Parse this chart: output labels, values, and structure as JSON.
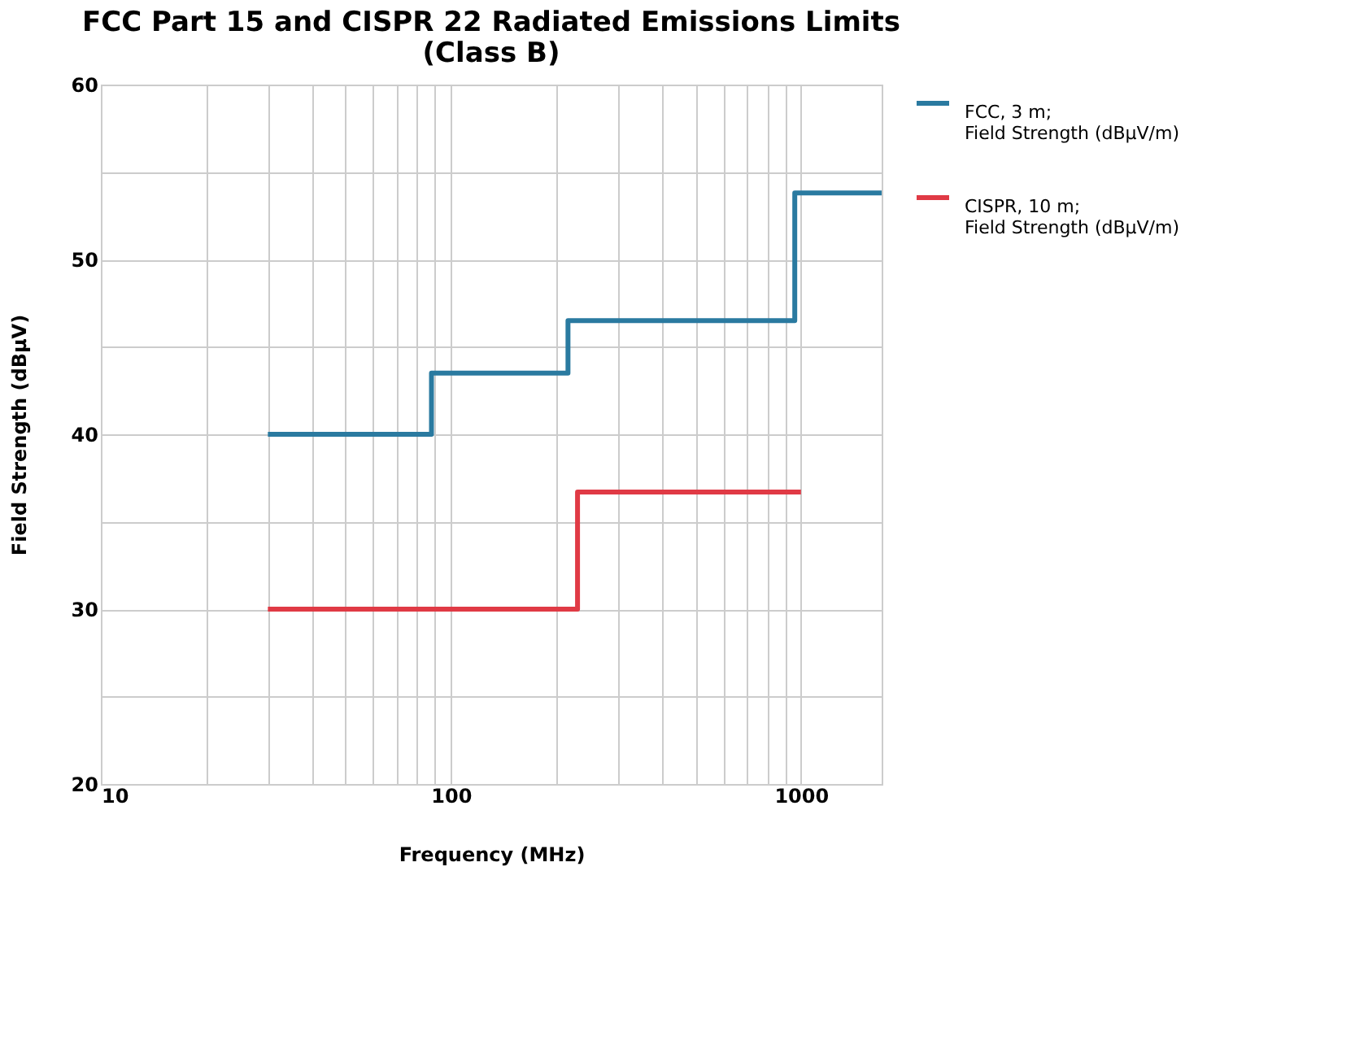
{
  "chart_data": {
    "type": "step",
    "title": "FCC Part 15 and CISPR 22 Radiated Emissions Limits\n(Class B)",
    "xlabel": "Frequency (MHz)",
    "ylabel": "Field Strength (dBμV)",
    "log": "x",
    "xlim": [
      10,
      1700
    ],
    "ylim": [
      20,
      60
    ],
    "xticks": [
      10,
      {
        "value": 20,
        "label": null
      },
      {
        "value": 30,
        "label": null
      },
      {
        "value": 40,
        "label": null
      },
      {
        "value": 50,
        "label": null
      },
      {
        "value": 60,
        "label": null
      },
      {
        "value": 70,
        "label": null
      },
      {
        "value": 80,
        "label": null
      },
      {
        "value": 90,
        "label": null
      },
      100,
      {
        "value": 200,
        "label": null
      },
      {
        "value": 300,
        "label": null
      },
      {
        "value": 400,
        "label": null
      },
      {
        "value": 500,
        "label": null
      },
      {
        "value": 600,
        "label": null
      },
      {
        "value": 700,
        "label": null
      },
      {
        "value": 800,
        "label": null
      },
      {
        "value": 900,
        "label": null
      },
      1000
    ],
    "yticks": [
      20,
      {
        "value": 25,
        "label": null
      },
      30,
      {
        "value": 35,
        "label": null
      },
      40,
      {
        "value": 45,
        "label": null
      },
      50,
      {
        "value": 55,
        "label": null
      },
      60
    ],
    "grid": true,
    "legend": "right",
    "line_style": "solid",
    "marker": "none",
    "series": [
      {
        "name": "FCC, 3  m;\nField Strength (dBμV/m)",
        "color": "#2a7aa0",
        "x": [
          30,
          88,
          216,
          960,
          1700
        ],
        "values": [
          40,
          43.5,
          46.5,
          53.8,
          53.8
        ]
      },
      {
        "name": "CISPR, 10  m;\nField Strength (dBμV/m)",
        "color": "#e03a45",
        "x": [
          30,
          230,
          1000
        ],
        "values": [
          30,
          36.7,
          36.7
        ]
      }
    ]
  }
}
